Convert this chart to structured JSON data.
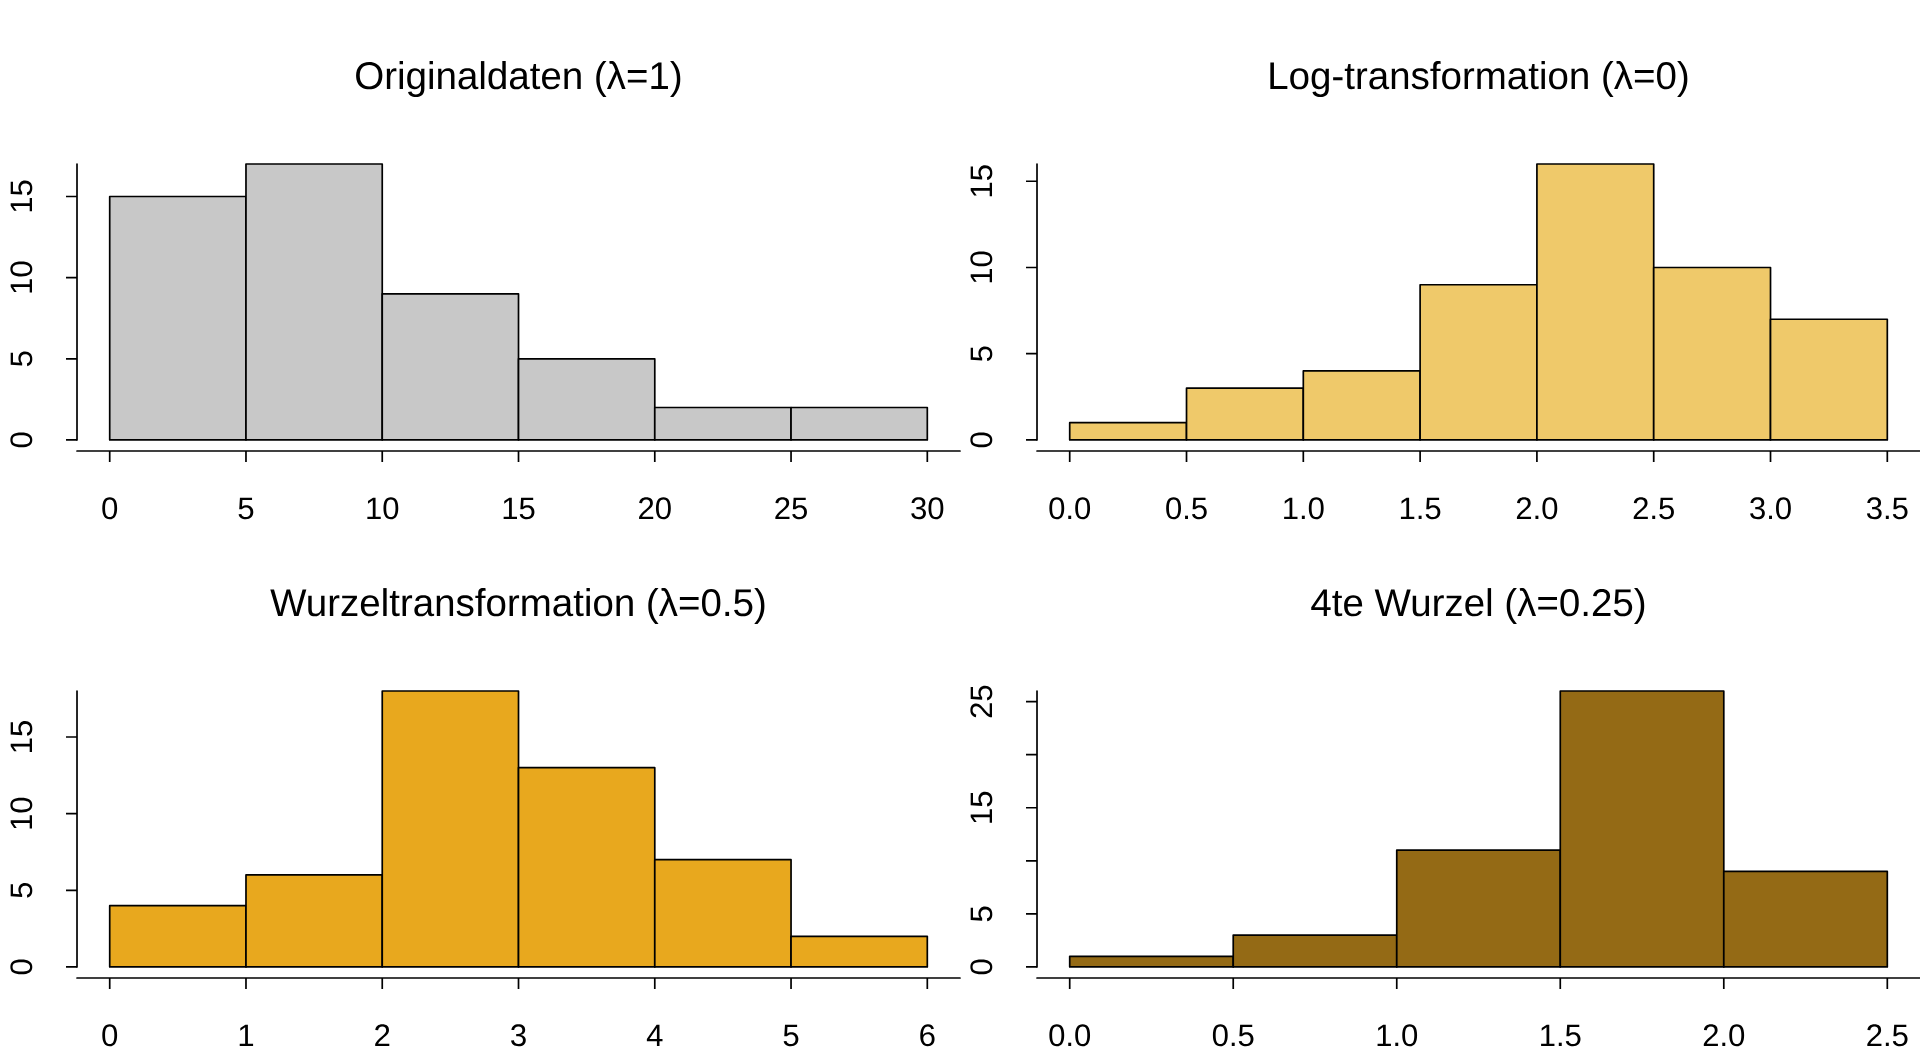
{
  "chart_data": [
    {
      "type": "histogram",
      "title": "Originaldaten (λ=1)",
      "bins": [
        0,
        5,
        10,
        15,
        20,
        25,
        30
      ],
      "values": [
        15,
        17,
        9,
        5,
        2,
        2
      ],
      "color": "#c8c8c8",
      "xlim": [
        -1.2,
        31.2
      ],
      "ylim": [
        0,
        17
      ],
      "xticks": [
        0,
        5,
        10,
        15,
        20,
        25,
        30
      ],
      "yticks": [
        0,
        5,
        10,
        15
      ]
    },
    {
      "type": "histogram",
      "title": "Log-transformation (λ=0)",
      "bins": [
        0,
        0.5,
        1,
        1.5,
        2,
        2.5,
        3,
        3.5
      ],
      "values": [
        1,
        3,
        4,
        9,
        16,
        10,
        7
      ],
      "color": "#efc96a",
      "xlim": [
        -0.14,
        3.64
      ],
      "ylim": [
        0,
        16
      ],
      "xticks": [
        {
          "value": 0,
          "label": "0.0"
        },
        0.5,
        {
          "value": 1,
          "label": "1.0"
        },
        1.5,
        {
          "value": 2,
          "label": "2.0"
        },
        2.5,
        {
          "value": 3,
          "label": "3.0"
        },
        3.5
      ],
      "yticks": [
        0,
        5,
        10,
        15
      ]
    },
    {
      "type": "histogram",
      "title": "Wurzeltransformation (λ=0.5)",
      "bins": [
        0,
        1,
        2,
        3,
        4,
        5,
        6
      ],
      "values": [
        4,
        6,
        18,
        13,
        7,
        2
      ],
      "color": "#e8a81e",
      "xlim": [
        -0.24,
        6.24
      ],
      "ylim": [
        0,
        18
      ],
      "xticks": [
        0,
        1,
        2,
        3,
        4,
        5,
        6
      ],
      "yticks": [
        0,
        5,
        10,
        15
      ]
    },
    {
      "type": "histogram",
      "title": "4te Wurzel (λ=0.25)",
      "bins": [
        0,
        0.5,
        1,
        1.5,
        2,
        2.5
      ],
      "values": [
        1,
        3,
        11,
        26,
        9
      ],
      "color": "#946a15",
      "xlim": [
        -0.1,
        2.6
      ],
      "ylim": [
        0,
        26
      ],
      "xticks": [
        {
          "value": 0,
          "label": "0.0"
        },
        0.5,
        {
          "value": 1,
          "label": "1.0"
        },
        1.5,
        {
          "value": 2,
          "label": "2.0"
        },
        2.5
      ],
      "yticks": [
        0,
        5,
        {
          "value": 10,
          "label": null
        },
        15,
        {
          "value": 20,
          "label": null
        },
        25
      ]
    }
  ]
}
